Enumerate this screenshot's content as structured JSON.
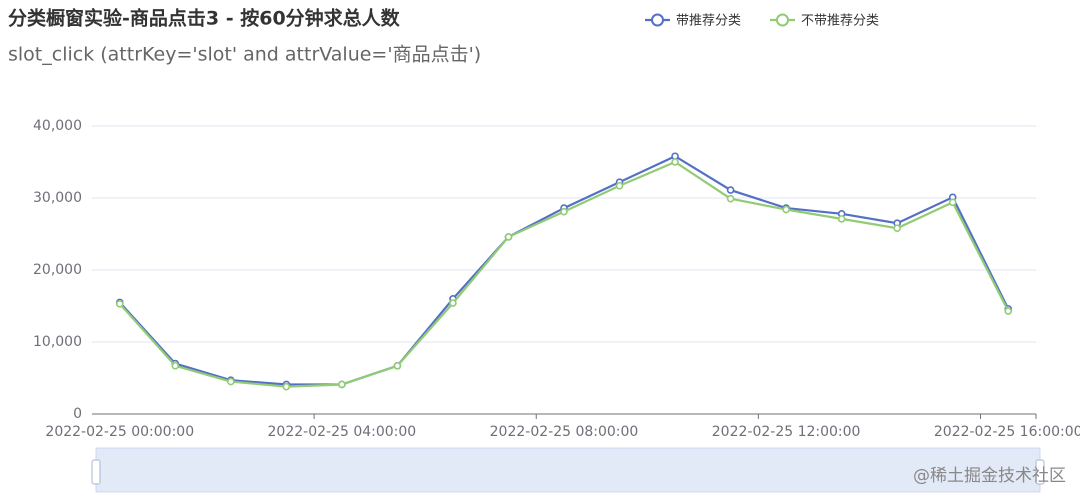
{
  "chart_data": {
    "type": "line",
    "title": "分类橱窗实验-商品点击3 - 按60分钟求总人数",
    "subtitle": "slot_click (attrKey='slot' and attrValue='商品点击')",
    "categories": [
      "2022-02-25 00:00:00",
      null,
      null,
      null,
      "2022-02-25 04:00:00",
      null,
      null,
      null,
      "2022-02-25 08:00:00",
      null,
      null,
      null,
      "2022-02-25 12:00:00",
      null,
      null,
      null,
      "2022-02-25 16:00:00"
    ],
    "series": [
      {
        "name": "带推荐分类",
        "color": "#5470c6",
        "values": [
          15500,
          7000,
          4700,
          4100,
          4100,
          6700,
          16000,
          24600,
          28600,
          32200,
          35800,
          31100,
          28600,
          27800,
          26500,
          30100,
          14600
        ]
      },
      {
        "name": "不带推荐分类",
        "color": "#91cc75",
        "values": [
          15300,
          6700,
          4500,
          3800,
          4100,
          6700,
          15400,
          24600,
          28100,
          31700,
          35000,
          29900,
          28400,
          27100,
          25800,
          29400,
          14300
        ]
      }
    ],
    "ylim": [
      0,
      40000
    ],
    "yticks": [
      0,
      {
        "value": 10000,
        "label": "10,000"
      },
      {
        "value": 20000,
        "label": "20,000"
      },
      {
        "value": 30000,
        "label": "30,000"
      },
      {
        "value": 40000,
        "label": "40,000"
      }
    ],
    "grid": true,
    "legend": "top-right",
    "watermark": "@稀土掘金技术社区"
  }
}
